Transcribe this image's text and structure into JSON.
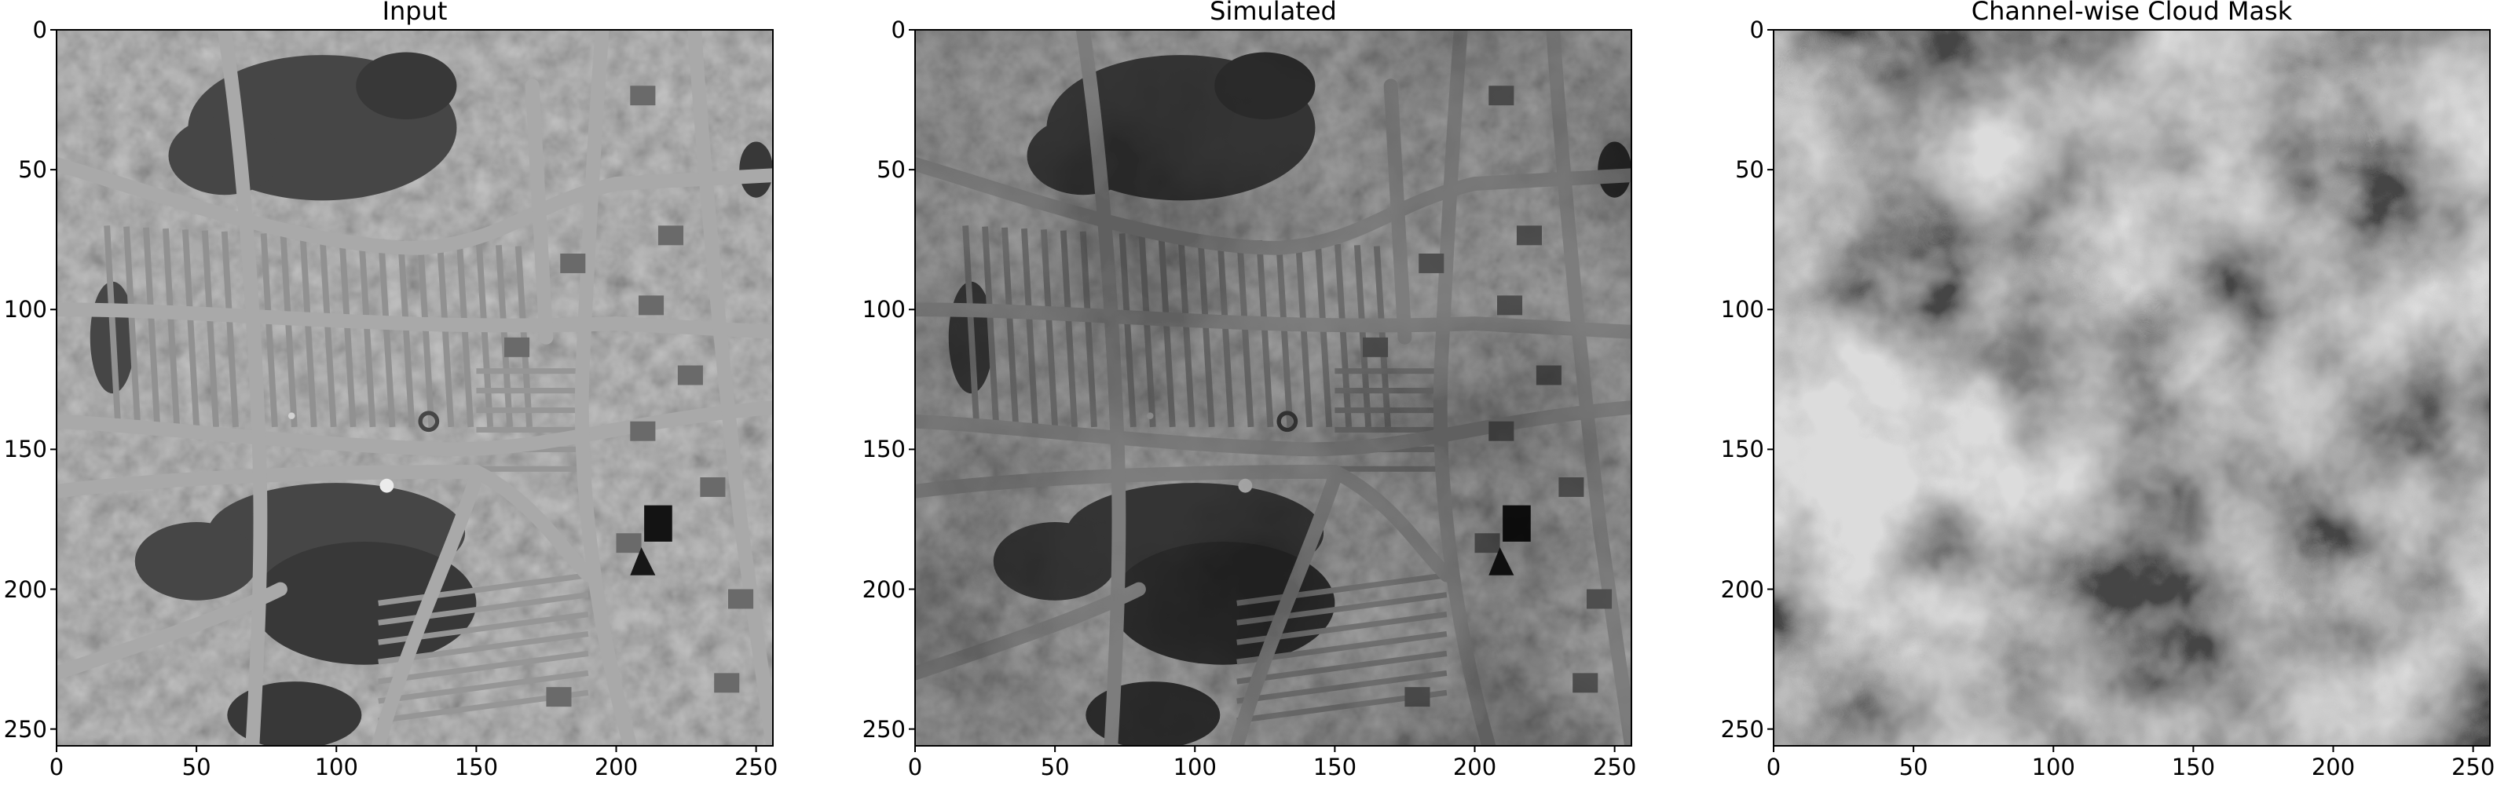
{
  "figure": {
    "panels": [
      {
        "title": "Input",
        "image": "grayscale aerial urban scene",
        "xticks": [
          "0",
          "50",
          "100",
          "150",
          "200",
          "250"
        ],
        "yticks": [
          "0",
          "50",
          "100",
          "150",
          "200",
          "250"
        ],
        "xlim": [
          0,
          256
        ],
        "ylim": [
          256,
          0
        ]
      },
      {
        "title": "Simulated",
        "image": "darkened aerial urban scene with simulated cloud shadow",
        "xticks": [
          "0",
          "50",
          "100",
          "150",
          "200",
          "250"
        ],
        "yticks": [
          "0",
          "50",
          "100",
          "150",
          "200",
          "250"
        ],
        "xlim": [
          0,
          256
        ],
        "ylim": [
          256,
          0
        ]
      },
      {
        "title": "Channel-wise Cloud Mask",
        "image": "grayscale cloud mask noise pattern",
        "xticks": [
          "0",
          "50",
          "100",
          "150",
          "200",
          "250"
        ],
        "yticks": [
          "0",
          "50",
          "100",
          "150",
          "200",
          "250"
        ],
        "xlim": [
          0,
          256
        ],
        "ylim": [
          256,
          0
        ]
      }
    ]
  }
}
